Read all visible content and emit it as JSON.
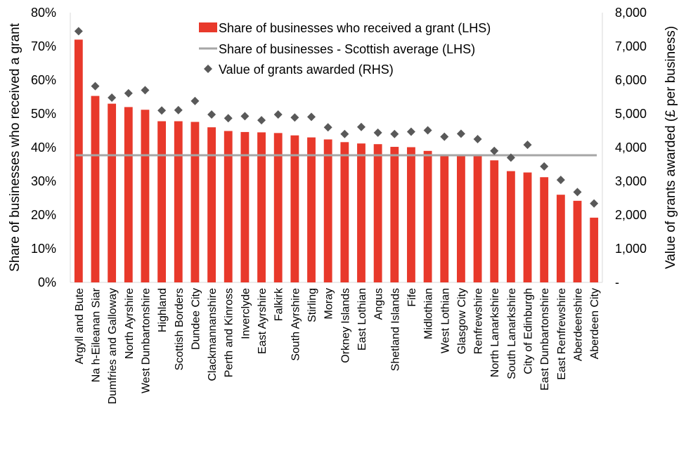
{
  "chart_data": {
    "type": "bar",
    "categories": [
      "Argyll and Bute",
      "Na h-Eileanan Siar",
      "Dumfries and Galloway",
      "North Ayrshire",
      "West Dunbartonshire",
      "Highland",
      "Scottish Borders",
      "Dundee City",
      "Clackmannanshire",
      "Perth and Kinross",
      "Inverclyde",
      "East Ayrshire",
      "Falkirk",
      "South Ayrshire",
      "Stirling",
      "Moray",
      "Orkney Islands",
      "East Lothian",
      "Angus",
      "Shetland Islands",
      "Fife",
      "Midlothian",
      "West Lothian",
      "Glasgow City",
      "Renfrewshire",
      "North Lanarkshire",
      "South Lanarkshire",
      "City of Edinburgh",
      "East Dunbartonshire",
      "East Renfrewshire",
      "Aberdeenshire",
      "Aberdeen City"
    ],
    "series": [
      {
        "name": "Share of businesses who received a grant (LHS)",
        "type": "bar",
        "axis": "left",
        "color": "#E8392B",
        "values": [
          0.72,
          0.553,
          0.53,
          0.52,
          0.512,
          0.478,
          0.478,
          0.476,
          0.46,
          0.449,
          0.446,
          0.445,
          0.443,
          0.436,
          0.43,
          0.424,
          0.416,
          0.412,
          0.41,
          0.402,
          0.401,
          0.39,
          0.38,
          0.376,
          0.376,
          0.362,
          0.33,
          0.326,
          0.312,
          0.26,
          0.242,
          0.192
        ]
      },
      {
        "name": "Share of businesses - Scottish average (LHS)",
        "type": "line",
        "axis": "left",
        "color": "#A6A6A6",
        "value": 0.377
      },
      {
        "name": "Value of grants awarded (RHS)",
        "type": "scatter",
        "axis": "right",
        "color": "#595959",
        "marker": "diamond",
        "values": [
          7450,
          5820,
          5480,
          5610,
          5700,
          5100,
          5110,
          5380,
          4980,
          4870,
          4930,
          4810,
          4980,
          4890,
          4910,
          4600,
          4400,
          4610,
          4440,
          4400,
          4470,
          4510,
          4320,
          4410,
          4250,
          3900,
          3700,
          4080,
          3440,
          3040,
          2680,
          2340
        ]
      }
    ],
    "left_axis": {
      "title": "Share of businesses who received a grant",
      "ylim": [
        0,
        0.8
      ],
      "ticks": [
        0,
        0.1,
        0.2,
        0.3,
        0.4,
        0.5,
        0.6,
        0.7,
        0.8
      ],
      "tick_labels": [
        "0%",
        "10%",
        "20%",
        "30%",
        "40%",
        "50%",
        "60%",
        "70%",
        "80%"
      ]
    },
    "right_axis": {
      "title": "Value of grants awarded (£ per business)",
      "ylim": [
        0,
        8000
      ],
      "ticks": [
        0,
        1000,
        2000,
        3000,
        4000,
        5000,
        6000,
        7000,
        8000
      ],
      "tick_labels": [
        "-",
        "1,000",
        "2,000",
        "3,000",
        "4,000",
        "5,000",
        "6,000",
        "7,000",
        "8,000"
      ]
    },
    "grid": false,
    "legend_position": "top"
  }
}
